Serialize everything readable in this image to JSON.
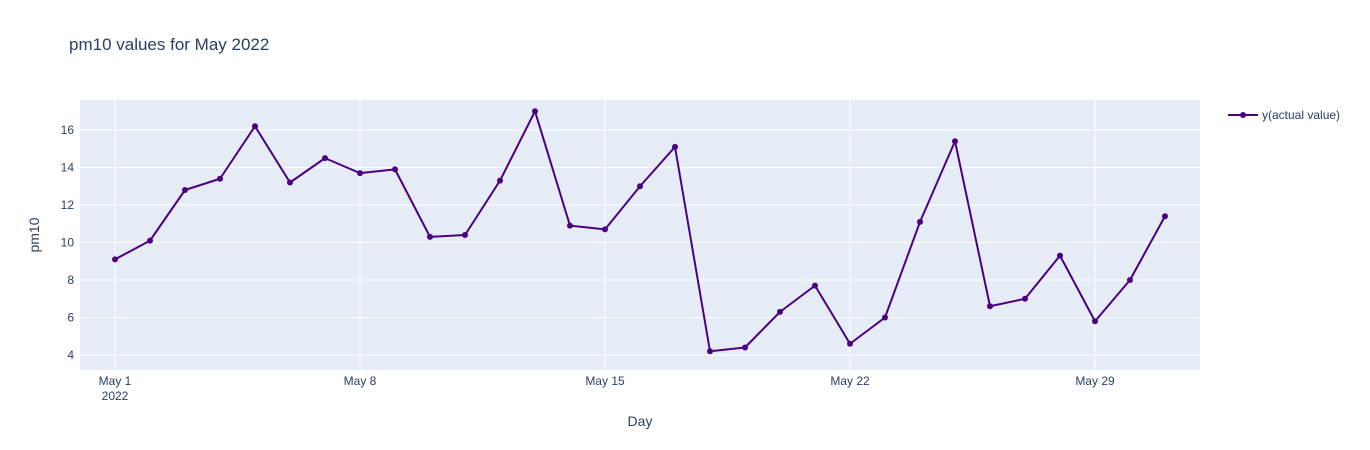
{
  "chart_data": {
    "type": "line",
    "title": "pm10 values for May 2022",
    "xlabel": "Day",
    "ylabel": "pm10",
    "x_ticks": [
      "May 1",
      "May 8",
      "May 15",
      "May 22",
      "May 29"
    ],
    "x_tick_year": "2022",
    "y_ticks": [
      "4",
      "6",
      "8",
      "10",
      "12",
      "14",
      "16"
    ],
    "xlim": [
      "2022-04-30",
      "2022-06-01"
    ],
    "ylim": [
      3.2,
      17.6
    ],
    "grid": true,
    "legend_position": "top-right",
    "series": [
      {
        "name": "y(actual value)",
        "color": "#4b0082",
        "x": [
          "2022-05-01",
          "2022-05-02",
          "2022-05-03",
          "2022-05-04",
          "2022-05-05",
          "2022-05-06",
          "2022-05-07",
          "2022-05-08",
          "2022-05-09",
          "2022-05-10",
          "2022-05-11",
          "2022-05-12",
          "2022-05-13",
          "2022-05-14",
          "2022-05-15",
          "2022-05-16",
          "2022-05-17",
          "2022-05-18",
          "2022-05-19",
          "2022-05-20",
          "2022-05-21",
          "2022-05-22",
          "2022-05-23",
          "2022-05-24",
          "2022-05-25",
          "2022-05-26",
          "2022-05-27",
          "2022-05-28",
          "2022-05-29",
          "2022-05-30",
          "2022-05-31"
        ],
        "values": [
          9.1,
          10.1,
          12.8,
          13.4,
          16.2,
          13.2,
          14.5,
          13.7,
          13.9,
          10.3,
          10.4,
          13.3,
          17.0,
          10.9,
          10.7,
          13.0,
          15.1,
          4.2,
          4.4,
          6.3,
          7.7,
          4.6,
          6.0,
          11.1,
          15.4,
          6.6,
          7.0,
          9.3,
          5.8,
          8.0,
          11.4
        ]
      }
    ]
  }
}
